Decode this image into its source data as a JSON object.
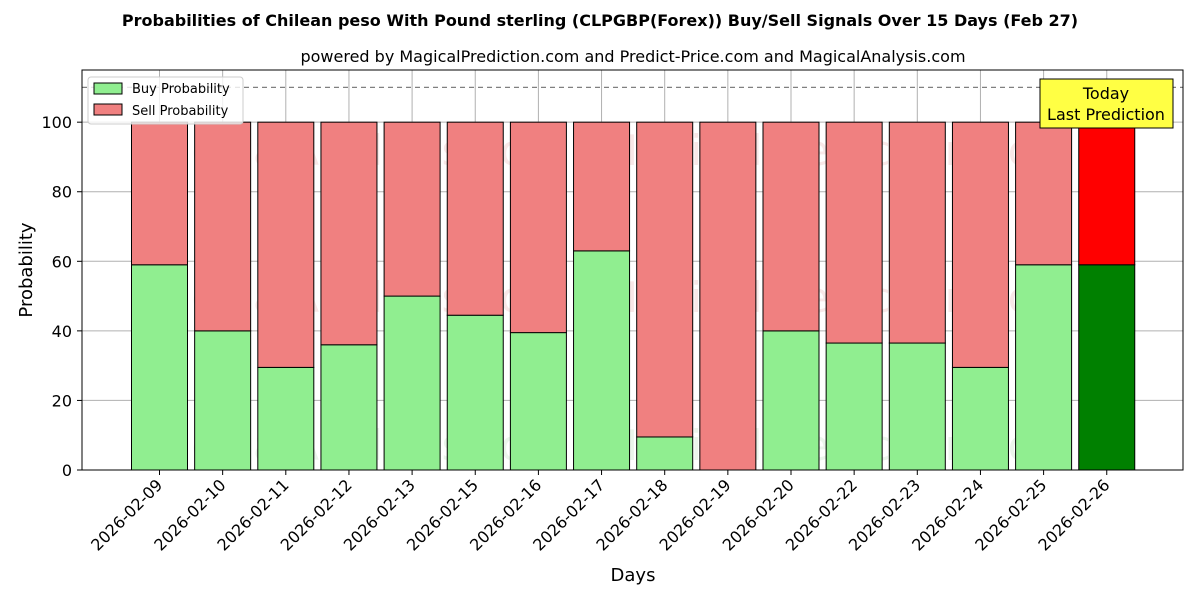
{
  "colors": {
    "buy": "#90ee90",
    "sell": "#f08080",
    "buy_today": "#008000",
    "sell_today": "#ff0000",
    "annotation_bg": "#ffff44"
  },
  "chart_data": {
    "type": "bar",
    "stacked": true,
    "title": "Probabilities of Chilean peso With Pound sterling (CLPGBP(Forex)) Buy/Sell Signals Over 15 Days (Feb 27)",
    "subtitle": "powered by MagicalPrediction.com and Predict-Price.com and MagicalAnalysis.com",
    "xlabel": "Days",
    "ylabel": "Probability",
    "ylim": [
      0,
      115
    ],
    "yticks": [
      0,
      20,
      40,
      60,
      80,
      100
    ],
    "reference_line": 110,
    "grid": true,
    "legend_position": "top-left",
    "categories": [
      "2026-02-09",
      "2026-02-10",
      "2026-02-11",
      "2026-02-12",
      "2026-02-13",
      "2026-02-15",
      "2026-02-16",
      "2026-02-17",
      "2026-02-18",
      "2026-02-19",
      "2026-02-20",
      "2026-02-22",
      "2026-02-23",
      "2026-02-24",
      "2026-02-25",
      "2026-02-26"
    ],
    "series": [
      {
        "name": "Buy Probability",
        "values": [
          59,
          40,
          29.5,
          36,
          50,
          44.5,
          39.5,
          63,
          9.5,
          0,
          40,
          36.5,
          36.5,
          29.5,
          59,
          59
        ]
      },
      {
        "name": "Sell Probability",
        "values": [
          41,
          60,
          70.5,
          64,
          50,
          55.5,
          60.5,
          37,
          90.5,
          100,
          60,
          63.5,
          63.5,
          70.5,
          41,
          41
        ]
      }
    ],
    "annotation": {
      "line1": "Today",
      "line2": "Last Prediction"
    },
    "watermarks": [
      "MagicalAnalysis.com",
      "MagicalPrediction.com"
    ]
  }
}
